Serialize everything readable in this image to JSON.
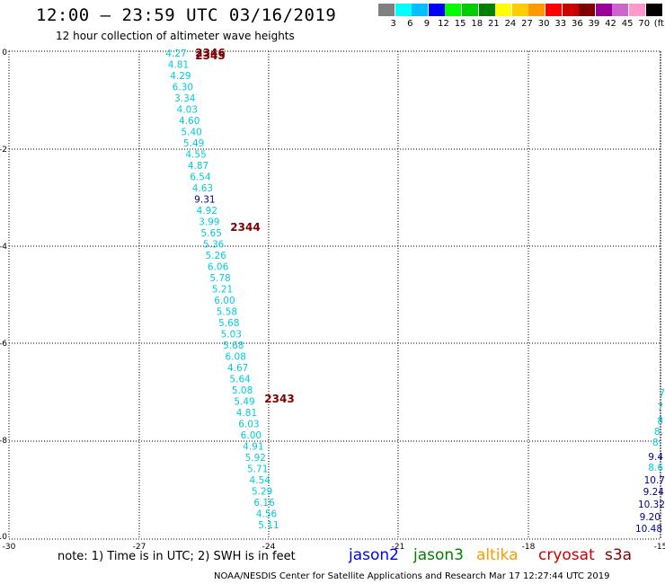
{
  "header": {
    "title": "12:00 — 23:59 UTC 03/16/2019",
    "subtitle": "12 hour collection of altimeter wave heights"
  },
  "color_scale": {
    "labels": [
      "3",
      "6",
      "9",
      "12",
      "15",
      "18",
      "21",
      "24",
      "27",
      "30",
      "33",
      "36",
      "39",
      "42",
      "45",
      "70",
      "(ft)"
    ],
    "colors": [
      "#808080",
      "#00ffff",
      "#00bfff",
      "#0000ff",
      "#00ff00",
      "#00cc00",
      "#008000",
      "#ffff00",
      "#ffcc00",
      "#ff9900",
      "#ff0000",
      "#cc0000",
      "#800000",
      "#990099",
      "#cc66cc",
      "#ff99cc",
      "#000000"
    ]
  },
  "axes": {
    "lat_labels": [
      "0",
      "-2",
      "-4",
      "-6",
      "-8",
      "-10"
    ],
    "lon_labels": [
      "-30",
      "-27",
      "-24",
      "-21",
      "-18",
      "-15"
    ]
  },
  "track_times": [
    "2346",
    "2345",
    "2344",
    "2343"
  ],
  "track_main": [
    "4.27",
    "4.81",
    "4.29",
    "6.30",
    "3.34",
    "4.03",
    "4.60",
    "5.40",
    "5.49",
    "4.55",
    "4.87",
    "6.54",
    "4.63",
    "9.31",
    "4.92",
    "3.99",
    "5.65",
    "5.36",
    "5.26",
    "6.06",
    "5.78",
    "5.21",
    "6.00",
    "5.58",
    "5.68",
    "5.03",
    "5.68",
    "6.08",
    "4.67",
    "5.64",
    "5.08",
    "5.49",
    "4.81",
    "6.03",
    "6.00",
    "4.91",
    "5.92",
    "5.71",
    "4.54",
    "5.29",
    "6.16",
    "4.56",
    "5.11"
  ],
  "track_right": [
    "7",
    "7",
    "8",
    "8.",
    "8.",
    "9.4",
    "8.6",
    "10.7",
    "9.24",
    "10.32",
    "9.20",
    "10.48"
  ],
  "footer": {
    "note": "note: 1) Time is in UTC; 2) SWH is in feet",
    "credit": "NOAA/NESDIS Center for Satellite Applications and Research   Mar 17 12:27:44 UTC 2019"
  },
  "legend": [
    {
      "name": "jason2",
      "color": "#0000ff"
    },
    {
      "name": "jason3",
      "color": "#008000"
    },
    {
      "name": "altika",
      "color": "#ff9900"
    },
    {
      "name": "cryosat",
      "color": "#cc0000"
    },
    {
      "name": "s3a",
      "color": "#800000"
    }
  ]
}
